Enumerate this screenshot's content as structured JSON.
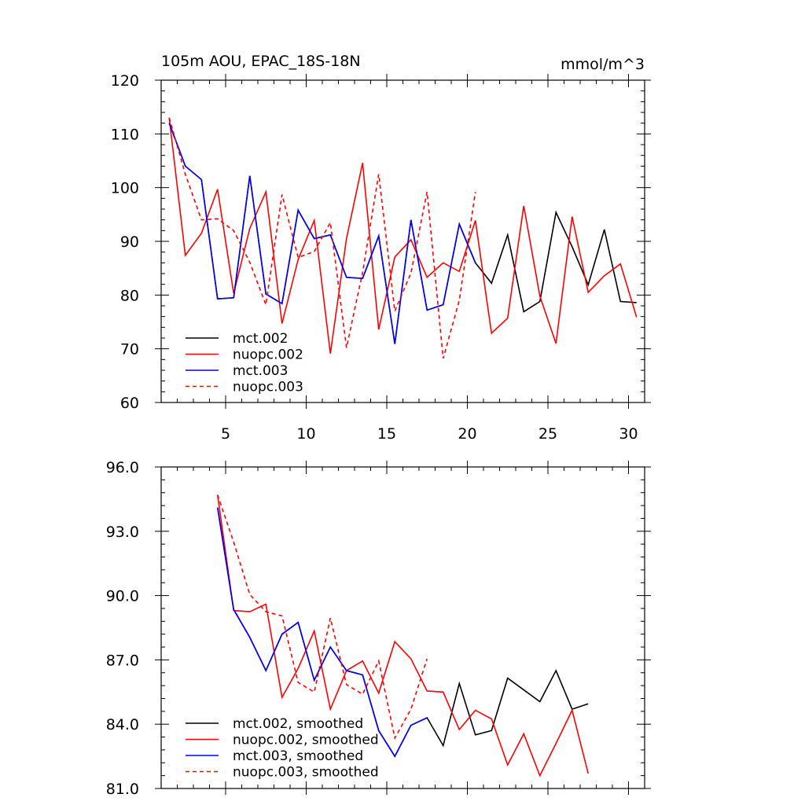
{
  "chart_data": [
    {
      "type": "line",
      "title": "105m AOU, EPAC_18S-18N",
      "units": "mmol/m^3",
      "xlim": [
        1,
        31
      ],
      "ylim": [
        60,
        120
      ],
      "xticks": [
        5,
        10,
        15,
        20,
        25,
        30
      ],
      "yticks": [
        60,
        70,
        80,
        90,
        100,
        110,
        120
      ],
      "ytick_format": "int",
      "legend": "bottom-left",
      "series": [
        {
          "name": "mct.002",
          "color": "#000000",
          "dash": "solid",
          "x": [
            1.5,
            2.5,
            3.5,
            4.5,
            5.5,
            6.5,
            7.5,
            8.5,
            9.5,
            10.5,
            11.5,
            12.5,
            13.5,
            14.5,
            15.5,
            16.5,
            17.5,
            18.5,
            19.5,
            20.5,
            21.5,
            22.5,
            23.5,
            24.5,
            25.5,
            26.5,
            27.5,
            28.5,
            29.5,
            30.5
          ],
          "y": [
            112,
            104,
            101.5,
            79.3,
            79.5,
            102.2,
            80.2,
            78.4,
            95.8,
            90.5,
            91.2,
            83.3,
            83.1,
            91,
            70.9,
            94,
            77.2,
            78.2,
            93.2,
            86,
            82.2,
            91.2,
            76.9,
            78.8,
            95.4,
            89,
            81.9,
            92.2,
            78.8,
            78.6
          ]
        },
        {
          "name": "nuopc.002",
          "color": "#ff0000",
          "dash": "solid",
          "x": [
            1.5,
            2.5,
            3.5,
            4.5,
            5.5,
            6.5,
            7.5,
            8.5,
            9.5,
            10.5,
            11.5,
            12.5,
            13.5,
            14.5,
            15.5,
            16.5,
            17.5,
            18.5,
            19.5,
            20.5,
            21.5,
            22.5,
            23.5,
            24.5,
            25.5,
            26.5,
            27.5,
            28.5,
            29.5,
            30.5
          ],
          "y": [
            113,
            87.4,
            91.5,
            99.7,
            80.3,
            92.4,
            99.2,
            74.7,
            86.6,
            93.9,
            69.1,
            90.5,
            104.6,
            73.6,
            87.1,
            90.3,
            83.3,
            86,
            84.4,
            93.9,
            72.9,
            75.7,
            96.6,
            79.8,
            71,
            94.6,
            80.5,
            83.6,
            85.8,
            75.9
          ]
        },
        {
          "name": "mct.003",
          "color": "#0000ff",
          "dash": "solid",
          "x": [
            1.5,
            2.5,
            3.5,
            4.5,
            5.5,
            6.5,
            7.5,
            8.5,
            9.5,
            10.5,
            11.5,
            12.5,
            13.5,
            14.5,
            15.5,
            16.5,
            17.5,
            18.5,
            19.5,
            20.5
          ],
          "y": [
            112,
            104,
            101.5,
            79.3,
            79.5,
            102.2,
            80.2,
            78.4,
            95.8,
            90.5,
            91.2,
            83.3,
            83.1,
            91,
            70.9,
            94,
            77.2,
            78.2,
            93.2,
            86
          ]
        },
        {
          "name": "nuopc.003",
          "color": "#ff0000",
          "dash": "dashed",
          "x": [
            1.5,
            2.5,
            3.5,
            4.5,
            5.5,
            6.5,
            7.5,
            8.5,
            9.5,
            10.5,
            11.5,
            12.5,
            13.5,
            14.5,
            15.5,
            16.5,
            17.5,
            18.5,
            19.5,
            20.5
          ],
          "y": [
            113,
            102.5,
            94,
            94.2,
            92,
            86.1,
            78.2,
            98.7,
            87,
            88.1,
            93.5,
            70.2,
            84.2,
            102.5,
            77,
            84.1,
            99.2,
            68.2,
            79,
            99.2
          ]
        }
      ]
    },
    {
      "type": "line",
      "title": "",
      "xlim": [
        1,
        31
      ],
      "ylim": [
        81,
        96
      ],
      "xticks": [
        5,
        10,
        15,
        20,
        25,
        30
      ],
      "yticks": [
        81,
        84,
        87,
        90,
        93,
        96
      ],
      "ytick_format": "1dp",
      "legend": "bottom-left",
      "series": [
        {
          "name": "mct.002, smoothed",
          "color": "#000000",
          "dash": "solid",
          "x": [
            4.5,
            5.5,
            6.5,
            7.5,
            8.5,
            9.5,
            10.5,
            11.5,
            12.5,
            13.5,
            14.5,
            15.5,
            16.5,
            17.5,
            18.5,
            19.5,
            20.5,
            21.5,
            22.5,
            23.5,
            24.5,
            25.5,
            26.5,
            27.5
          ],
          "y": [
            94.1,
            89.35,
            88.05,
            86.5,
            88.2,
            88.75,
            86.05,
            87.6,
            86.5,
            86.3,
            83.7,
            82.5,
            83.95,
            84.3,
            83,
            85.9,
            83.5,
            83.7,
            86.15,
            85.6,
            85.05,
            86.5,
            84.7,
            84.95
          ]
        },
        {
          "name": "nuopc.002, smoothed",
          "color": "#ff0000",
          "dash": "solid",
          "x": [
            4.5,
            5.5,
            6.5,
            7.5,
            8.5,
            9.5,
            10.5,
            11.5,
            12.5,
            13.5,
            14.5,
            15.5,
            16.5,
            17.5,
            18.5,
            19.5,
            20.5,
            21.5,
            22.5,
            23.5,
            24.5,
            25.5,
            26.5,
            27.5
          ],
          "y": [
            94.7,
            89.3,
            89.25,
            89.6,
            85.25,
            86.6,
            88.35,
            84.7,
            86.5,
            86.95,
            85.45,
            87.85,
            87.05,
            85.55,
            85.5,
            83.75,
            84.65,
            84.25,
            82.1,
            83.55,
            81.6,
            83.1,
            84.65,
            81.7
          ]
        },
        {
          "name": "mct.003, smoothed",
          "color": "#0000ff",
          "dash": "solid",
          "x": [
            4.5,
            5.5,
            6.5,
            7.5,
            8.5,
            9.5,
            10.5,
            11.5,
            12.5,
            13.5,
            14.5,
            15.5,
            16.5,
            17.5
          ],
          "y": [
            94.1,
            89.35,
            88.05,
            86.5,
            88.2,
            88.75,
            86.05,
            87.6,
            86.5,
            86.3,
            83.7,
            82.5,
            83.95,
            84.3
          ]
        },
        {
          "name": "nuopc.003, smoothed",
          "color": "#ff0000",
          "dash": "dashed",
          "x": [
            4.5,
            5.5,
            6.5,
            7.5,
            8.5,
            9.5,
            10.5,
            11.5,
            12.5,
            13.5,
            14.5,
            15.5,
            16.5,
            17.5
          ],
          "y": [
            94.7,
            92.5,
            90.05,
            89.25,
            89.05,
            85.95,
            85.5,
            88.95,
            85.85,
            85.4,
            86.95,
            83.35,
            84.7,
            87.05
          ]
        }
      ]
    }
  ]
}
